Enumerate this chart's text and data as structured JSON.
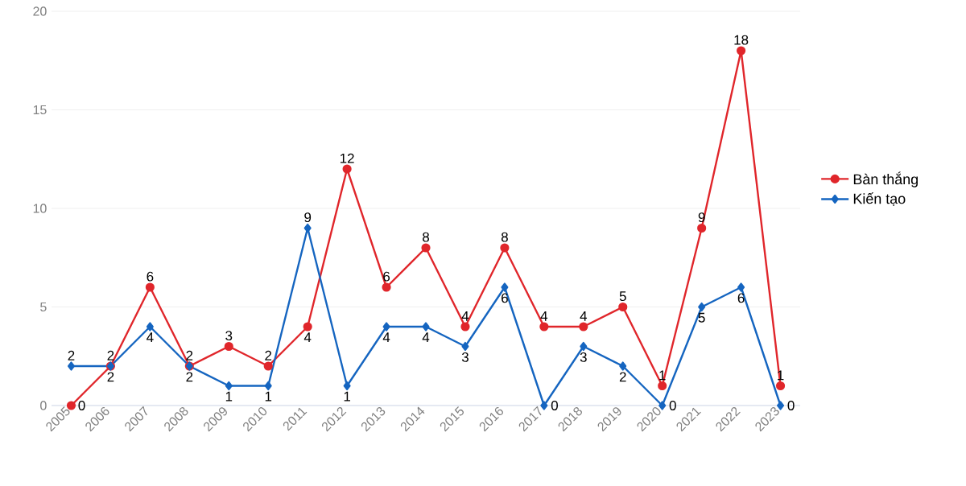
{
  "chart_data": {
    "type": "line",
    "categories": [
      "2005",
      "2006",
      "2007",
      "2008",
      "2009",
      "2010",
      "2011",
      "2012",
      "2013",
      "2014",
      "2015",
      "2016",
      "2017",
      "2018",
      "2019",
      "2020",
      "2021",
      "2022",
      "2023"
    ],
    "series": [
      {
        "name": "Bàn thắng",
        "color": "#e0262b",
        "marker": "circle",
        "values": [
          0,
          2,
          6,
          2,
          3,
          2,
          4,
          12,
          6,
          8,
          4,
          8,
          4,
          4,
          5,
          1,
          9,
          18,
          1
        ]
      },
      {
        "name": "Kiến tạo",
        "color": "#1565c0",
        "marker": "diamond",
        "values": [
          2,
          2,
          4,
          2,
          1,
          1,
          9,
          1,
          4,
          4,
          3,
          6,
          0,
          3,
          2,
          0,
          5,
          6,
          0
        ]
      }
    ],
    "ylim": [
      0,
      20
    ],
    "yticks": [
      0,
      5,
      10,
      15,
      20
    ],
    "grid": "y",
    "legend": "right",
    "data_labels": true
  }
}
